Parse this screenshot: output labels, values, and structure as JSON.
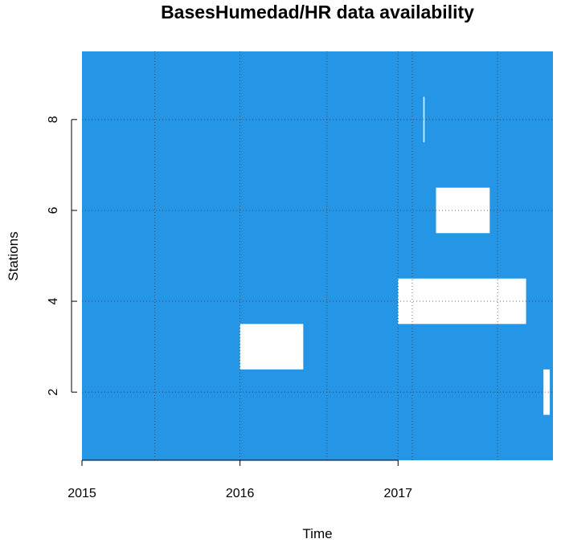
{
  "chart_data": {
    "type": "heatmap",
    "title": "BasesHumedad/HR data availability",
    "xlabel": "Time",
    "ylabel": "Stations",
    "x_ticks": [
      {
        "label": "2015",
        "value": 2015.0
      },
      {
        "label": "2016",
        "value": 2016.0
      },
      {
        "label": "2017",
        "value": 2017.0
      }
    ],
    "y_ticks": [
      {
        "label": "2",
        "value": 2
      },
      {
        "label": "4",
        "value": 4
      },
      {
        "label": "6",
        "value": 6
      },
      {
        "label": "8",
        "value": 8
      }
    ],
    "xlim": [
      2015.0,
      2017.98
    ],
    "ylim": [
      0.5,
      9.5
    ],
    "grid": true,
    "grid_x_values": [
      2015.46,
      2016.0,
      2016.55,
      2017.0,
      2017.09,
      2017.63
    ],
    "grid_y_values": [
      2,
      4,
      6,
      8
    ],
    "colors": {
      "available": "#2596e6",
      "missing": "#ffffff",
      "grid": "#333333"
    },
    "missing_blocks": [
      {
        "station": 2,
        "x_start": 2017.92,
        "x_end": 2017.96
      },
      {
        "station": 3,
        "x_start": 2016.0,
        "x_end": 2016.4
      },
      {
        "station": 4,
        "x_start": 2017.0,
        "x_end": 2017.81
      },
      {
        "station": 6,
        "x_start": 2017.24,
        "x_end": 2017.58
      },
      {
        "station": 8,
        "x_start": 2017.16,
        "x_end": 2017.165
      }
    ]
  }
}
